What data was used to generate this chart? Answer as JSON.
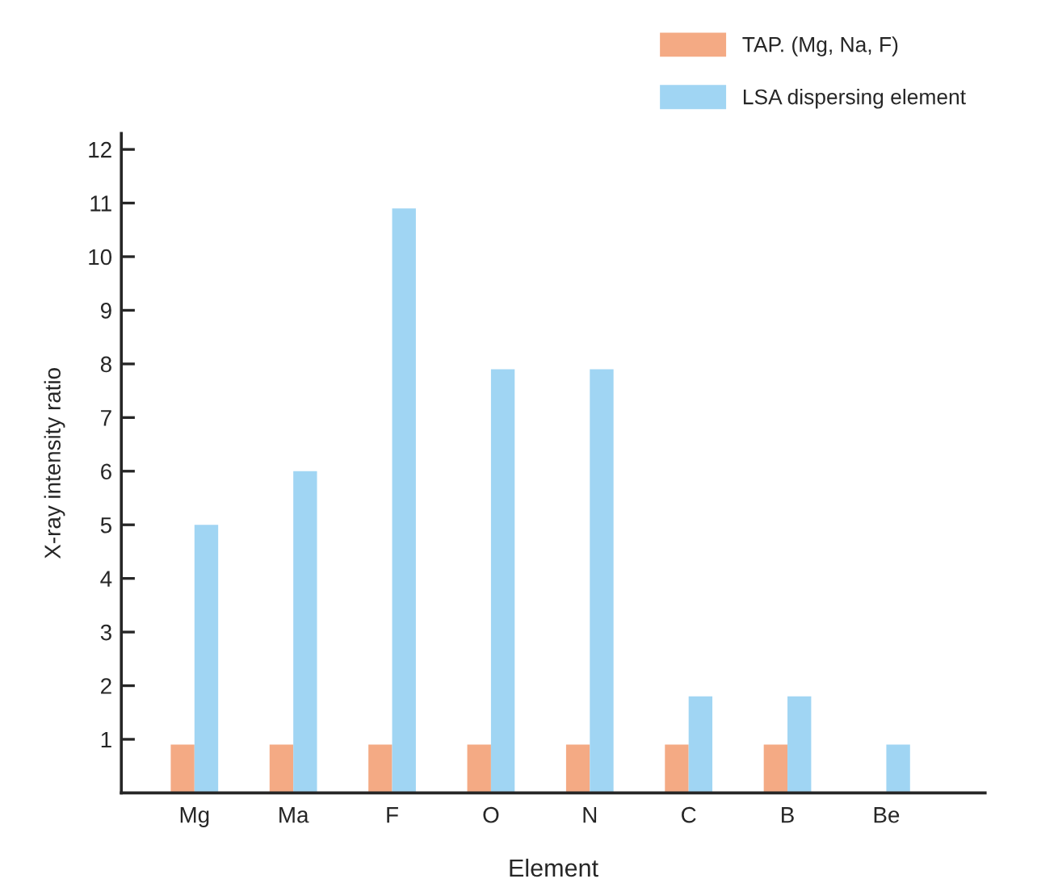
{
  "chart_data": {
    "type": "bar",
    "xlabel": "Element",
    "ylabel": "X-ray intensity ratio",
    "categories": [
      "Mg",
      "Ma",
      "F",
      "O",
      "N",
      "C",
      "B",
      "Be"
    ],
    "series": [
      {
        "name": "TAP. (Mg, Na, F)",
        "color": "#f4aa84",
        "values": [
          0.9,
          0.9,
          0.9,
          0.9,
          0.9,
          0.9,
          0.9,
          null
        ]
      },
      {
        "name": "LSA dispersing element",
        "color": "#a0d5f3",
        "values": [
          5,
          6,
          10.9,
          7.9,
          7.9,
          1.8,
          1.8,
          0.9
        ]
      }
    ],
    "ylim": [
      0,
      12.3
    ],
    "yticks": [
      1,
      2,
      3,
      4,
      5,
      6,
      7,
      8,
      9,
      10,
      11,
      12
    ],
    "grid": false,
    "legend": "top right"
  }
}
